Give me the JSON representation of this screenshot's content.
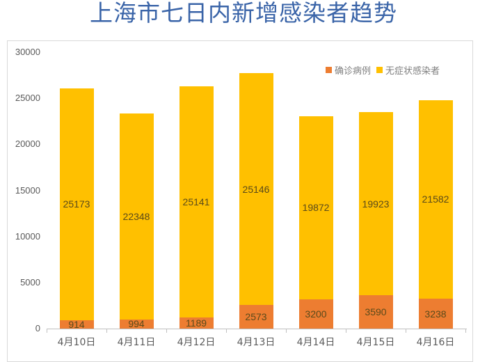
{
  "title": "上海市七日内新增感染者趋势",
  "legend": [
    {
      "label": "确诊病例",
      "color": "#ed7d31"
    },
    {
      "label": "无症状感染者",
      "color": "#ffc000"
    }
  ],
  "yaxis": {
    "ticks": [
      "30000",
      "25000",
      "20000",
      "15000",
      "10000",
      "5000",
      "0"
    ]
  },
  "chart_data": {
    "type": "bar",
    "stacked": true,
    "title": "上海市七日内新增感染者趋势",
    "xlabel": "",
    "ylabel": "",
    "ylim": [
      0,
      30000
    ],
    "yticks": [
      0,
      5000,
      10000,
      15000,
      20000,
      25000,
      30000
    ],
    "grid": false,
    "legend_position": "top-right",
    "categories": [
      "4月10日",
      "4月11日",
      "4月12日",
      "4月13日",
      "4月14日",
      "4月15日",
      "4月16日"
    ],
    "series": [
      {
        "name": "确诊病例",
        "color": "#ed7d31",
        "values": [
          914,
          994,
          1189,
          2573,
          3200,
          3590,
          3238
        ]
      },
      {
        "name": "无症状感染者",
        "color": "#ffc000",
        "values": [
          25173,
          22348,
          25141,
          25146,
          19872,
          19923,
          21582
        ]
      }
    ]
  },
  "labels": {
    "confirmed": [
      "914",
      "994",
      "1189",
      "2573",
      "3200",
      "3590",
      "3238"
    ],
    "asymptomatic": [
      "25173",
      "22348",
      "25141",
      "25146",
      "19872",
      "19923",
      "21582"
    ],
    "categories": [
      "4月10日",
      "4月11日",
      "4月12日",
      "4月13日",
      "4月14日",
      "4月15日",
      "4月16日"
    ]
  }
}
